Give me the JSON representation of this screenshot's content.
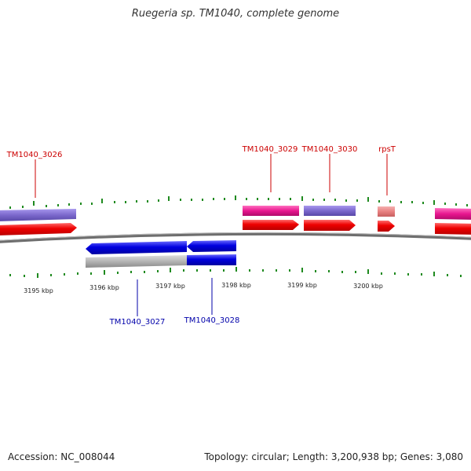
{
  "title": "Ruegeria sp. TM1040, complete genome",
  "accession": "Accession: NC_008044",
  "topology": "Topology: circular; Length: 3,200,938 bp; Genes: 3,080",
  "colors": {
    "backbone": "#7a7a7a",
    "tick": "#1f8a1f",
    "forward_label": "#cc0000",
    "reverse_label": "#0000aa",
    "cds_forward": "#ee0000",
    "cds_reverse": "#0000e0",
    "gene_purple": "#7b68cc",
    "gene_pink": "#e8168f",
    "gene_lightpink": "#e88080",
    "gene_grey": "#b4b4b4"
  },
  "scale_labels": [
    "3195 kbp",
    "3196 kbp",
    "3197 kbp",
    "3198 kbp",
    "3199 kbp",
    "3200 kbp"
  ],
  "genes_top": [
    {
      "label": "TM1040_3026"
    },
    {
      "label": "TM1040_3029"
    },
    {
      "label": "TM1040_3030"
    },
    {
      "label": "rpsT"
    }
  ],
  "genes_bottom": [
    {
      "label": "TM1040_3027"
    },
    {
      "label": "TM1040_3028"
    }
  ]
}
